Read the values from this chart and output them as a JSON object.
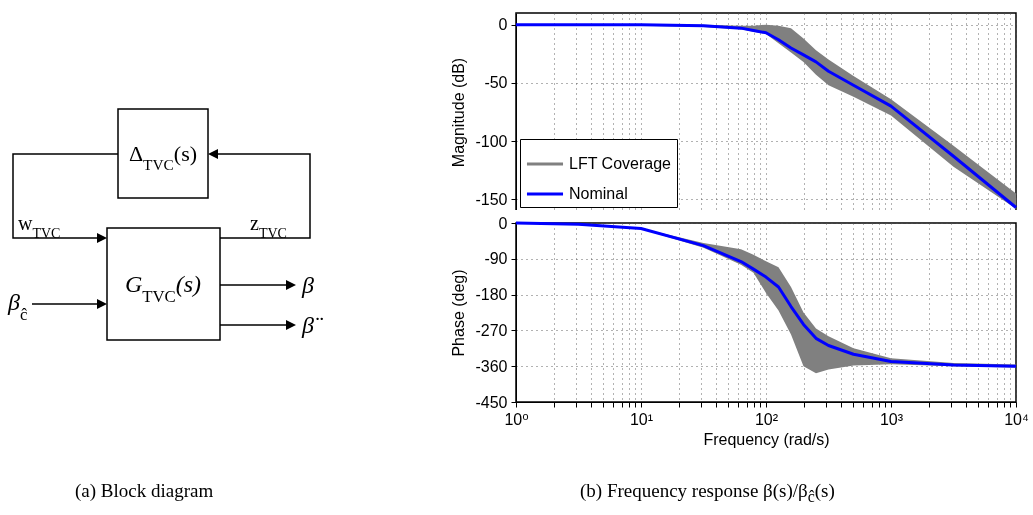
{
  "chart_data": [
    {
      "type": "other",
      "annotations": [
        "Δ$_{TVC}$(s)",
        "w$_{TVC}$",
        "z$_{TVC}$",
        "G$_{TVC}$(s)",
        "β",
        "β̈",
        "β$_{ĉ}$",
        "(a) Block diagram"
      ]
    },
    {
      "type": "line",
      "ylabel": "Magnitude (dB)",
      "log": "x",
      "grid": true,
      "legend": "bottom left",
      "tick_labels": "y",
      "xlim": [
        1,
        10000
      ],
      "ylim": [
        -160,
        10
      ],
      "yticks": [
        -150,
        -100,
        -50,
        0
      ],
      "xticks": [
        {
          "value": 1,
          "label": null
        },
        {
          "value": 2,
          "label": null
        },
        {
          "value": 3,
          "label": null
        },
        {
          "value": 4,
          "label": null
        },
        {
          "value": 5,
          "label": null
        },
        {
          "value": 6,
          "label": null
        },
        {
          "value": 7,
          "label": null
        },
        {
          "value": 8,
          "label": null
        },
        {
          "value": 9,
          "label": null
        },
        {
          "value": 10,
          "label": null
        },
        {
          "value": 20,
          "label": null
        },
        {
          "value": 30,
          "label": null
        },
        {
          "value": 40,
          "label": null
        },
        {
          "value": 50,
          "label": null
        },
        {
          "value": 60,
          "label": null
        },
        {
          "value": 70,
          "label": null
        },
        {
          "value": 80,
          "label": null
        },
        {
          "value": 90,
          "label": null
        },
        {
          "value": 100,
          "label": null
        },
        {
          "value": 200,
          "label": null
        },
        {
          "value": 300,
          "label": null
        },
        {
          "value": 400,
          "label": null
        },
        {
          "value": 500,
          "label": null
        },
        {
          "value": 600,
          "label": null
        },
        {
          "value": 700,
          "label": null
        },
        {
          "value": 800,
          "label": null
        },
        {
          "value": 900,
          "label": null
        },
        {
          "value": 1000,
          "label": null
        },
        {
          "value": 2000,
          "label": null
        },
        {
          "value": 3000,
          "label": null
        },
        {
          "value": 4000,
          "label": null
        },
        {
          "value": 5000,
          "label": null
        },
        {
          "value": 6000,
          "label": null
        },
        {
          "value": 7000,
          "label": null
        },
        {
          "value": 8000,
          "label": null
        },
        {
          "value": 9000,
          "label": null
        },
        {
          "value": 10000,
          "label": null
        }
      ],
      "x": [
        1,
        3.16,
        10,
        31.6,
        63.1,
        79.4,
        100,
        125.9,
        158.5,
        199.5,
        251.2,
        316.2,
        501.2,
        1000,
        3162,
        10000
      ],
      "series": [
        {
          "name": "LFT Coverage",
          "color": "#808080",
          "values": [
            null,
            null,
            null,
            null,
            null,
            null,
            null,
            null,
            null,
            null,
            null,
            null,
            null,
            null,
            null,
            null
          ],
          "lower": [
            0,
            0,
            -1,
            -2,
            -4,
            -6,
            -8,
            -16,
            -24,
            -32,
            -43,
            -52,
            -62,
            -78,
            -122,
            -158
          ],
          "upper": [
            0,
            0,
            0,
            0,
            -1,
            -1,
            0,
            -1,
            -3,
            -12,
            -22,
            -30,
            -44,
            -64,
            -104,
            -145
          ]
        },
        {
          "name": "Nominal",
          "color": "#0000ff",
          "values": [
            0,
            0,
            0,
            -1,
            -3,
            -5,
            -7,
            -13,
            -20,
            -26,
            -32,
            -40,
            -52,
            -70,
            -113,
            -157
          ]
        }
      ]
    },
    {
      "type": "line",
      "ylabel": "Phase (deg)",
      "xlabel": "Frequency  (rad/s)",
      "log": "x",
      "grid": true,
      "xlim": [
        1,
        10000
      ],
      "ylim": [
        -450,
        0
      ],
      "yticks": [
        -450,
        -360,
        -270,
        -180,
        -90,
        0
      ],
      "xticks": [
        {
          "value": 1,
          "label": "10⁰"
        },
        {
          "value": 2,
          "label": null
        },
        {
          "value": 3,
          "label": null
        },
        {
          "value": 4,
          "label": null
        },
        {
          "value": 5,
          "label": null
        },
        {
          "value": 6,
          "label": null
        },
        {
          "value": 7,
          "label": null
        },
        {
          "value": 8,
          "label": null
        },
        {
          "value": 9,
          "label": null
        },
        {
          "value": 10,
          "label": "10¹"
        },
        {
          "value": 20,
          "label": null
        },
        {
          "value": 30,
          "label": null
        },
        {
          "value": 40,
          "label": null
        },
        {
          "value": 50,
          "label": null
        },
        {
          "value": 60,
          "label": null
        },
        {
          "value": 70,
          "label": null
        },
        {
          "value": 80,
          "label": null
        },
        {
          "value": 90,
          "label": null
        },
        {
          "value": 100,
          "label": "10²"
        },
        {
          "value": 200,
          "label": null
        },
        {
          "value": 300,
          "label": null
        },
        {
          "value": 400,
          "label": null
        },
        {
          "value": 500,
          "label": null
        },
        {
          "value": 600,
          "label": null
        },
        {
          "value": 700,
          "label": null
        },
        {
          "value": 800,
          "label": null
        },
        {
          "value": 900,
          "label": null
        },
        {
          "value": 1000,
          "label": "10³"
        },
        {
          "value": 2000,
          "label": null
        },
        {
          "value": 3000,
          "label": null
        },
        {
          "value": 4000,
          "label": null
        },
        {
          "value": 5000,
          "label": null
        },
        {
          "value": 6000,
          "label": null
        },
        {
          "value": 7000,
          "label": null
        },
        {
          "value": 8000,
          "label": null
        },
        {
          "value": 9000,
          "label": null
        },
        {
          "value": 10000,
          "label": "10⁴"
        }
      ],
      "x": [
        1,
        3.16,
        10,
        31.6,
        63.1,
        79.4,
        100,
        125.9,
        158.5,
        199.5,
        251.2,
        316.2,
        501.2,
        1000,
        3162,
        10000
      ],
      "series": [
        {
          "color": "#808080",
          "values": [
            null,
            null,
            null,
            null,
            null,
            null,
            null,
            null,
            null,
            null,
            null,
            null,
            null,
            null,
            null,
            null
          ],
          "lower": [
            0,
            -3,
            -15,
            -62,
            -105,
            -125,
            -176,
            -220,
            -280,
            -360,
            -378,
            -368,
            -358,
            -355,
            -360,
            -363
          ],
          "upper": [
            0,
            -3,
            -13,
            -50,
            -66,
            -80,
            -96,
            -111,
            -161,
            -225,
            -265,
            -285,
            -315,
            -340,
            -352,
            -356
          ]
        },
        {
          "color": "#0000ff",
          "values": [
            0,
            -3,
            -14,
            -57,
            -97,
            -116,
            -136,
            -161,
            -210,
            -255,
            -290,
            -308,
            -330,
            -348,
            -357,
            -360
          ]
        }
      ],
      "annotations": [
        "(b) Frequency response β(s)/β$_{ĉ}$(s)"
      ]
    }
  ]
}
